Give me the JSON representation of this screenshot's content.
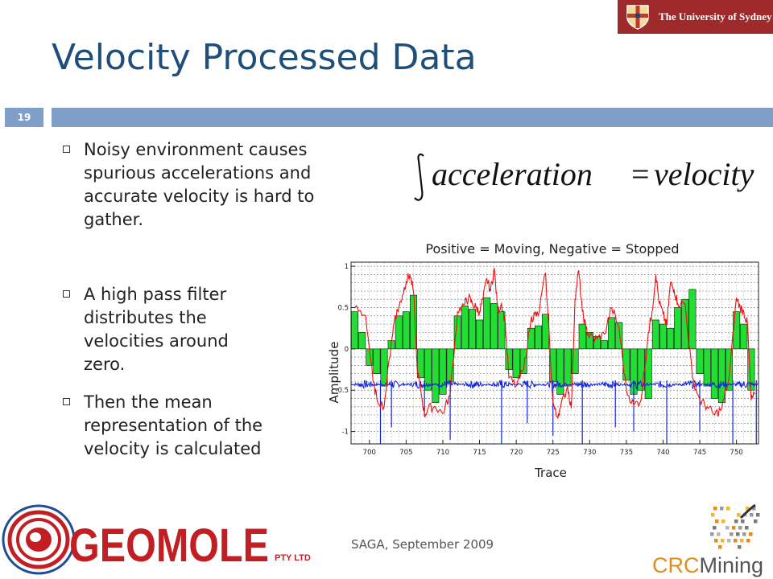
{
  "slide": {
    "title": "Velocity Processed Data",
    "number": "19",
    "university": "The University of Sydney",
    "footer": "SAGA, September 2009"
  },
  "bullets": [
    "Noisy environment causes spurious accelerations and accurate velocity is hard to gather.",
    "A high pass filter distributes the velocities around zero.",
    "Then the mean representation of the velocity is calculated"
  ],
  "equation": {
    "lhs": "acceleration",
    "rhs": "velocity",
    "operator": "="
  },
  "logos": {
    "geomole": "GEOMOLE",
    "geomole_suffix": "PTY LTD",
    "crc_prefix": "CRC",
    "crc_suffix": "Mining"
  },
  "colors": {
    "title": "#1f4e79",
    "header_bar": "#7f9fc9",
    "university_banner": "#9e2a2b",
    "bars": "#22dd33",
    "red_series": "#ee1111",
    "blue_series": "#1122dd",
    "geomole": "#c21f25"
  },
  "chart_data": {
    "type": "bar",
    "title": "Positive = Moving, Negative = Stopped",
    "xlabel": "Trace",
    "ylabel": "Amplitude",
    "xlim": [
      697.5,
      753
    ],
    "ylim": [
      -1.15,
      1.05
    ],
    "xticks": [
      700,
      705,
      710,
      715,
      720,
      725,
      730,
      735,
      740,
      745,
      750
    ],
    "yticks": [
      1,
      0.5,
      0,
      -0.5,
      -1
    ],
    "grid": true,
    "x": [
      698,
      699,
      700,
      701,
      702,
      703,
      704,
      705,
      706,
      707,
      708,
      709,
      710,
      711,
      712,
      713,
      714,
      715,
      716,
      717,
      718,
      719,
      720,
      721,
      722,
      723,
      724,
      725,
      726,
      727,
      728,
      729,
      730,
      731,
      732,
      733,
      734,
      735,
      736,
      737,
      738,
      739,
      740,
      741,
      742,
      743,
      744,
      745,
      746,
      747,
      748,
      749,
      750,
      751,
      752
    ],
    "values": [
      0.45,
      0.2,
      -0.2,
      -0.3,
      -0.45,
      0.1,
      0.4,
      0.45,
      0.65,
      -0.35,
      -0.5,
      -0.65,
      -0.55,
      -0.4,
      0.4,
      0.52,
      0.48,
      0.35,
      0.62,
      0.55,
      0.45,
      -0.25,
      -0.35,
      -0.3,
      0.25,
      0.28,
      0.42,
      -0.4,
      -0.55,
      -0.45,
      -0.3,
      0.3,
      0.2,
      0.15,
      0.1,
      0.38,
      0.32,
      -0.38,
      -0.55,
      -0.5,
      -0.6,
      0.35,
      0.3,
      0.25,
      0.5,
      0.6,
      0.72,
      -0.3,
      -0.45,
      -0.6,
      -0.65,
      -0.5,
      0.45,
      0.3,
      -0.5
    ],
    "series": [
      {
        "name": "",
        "x": [
          698,
          699.5,
          700.5,
          701,
          702,
          703,
          703.5,
          704,
          704.5,
          705,
          705.5,
          706,
          706.5,
          707,
          707.5,
          708,
          709,
          710,
          711,
          712,
          713,
          713.5,
          714,
          714.5,
          715,
          715.5,
          716,
          716.5,
          717,
          717.5,
          718,
          718.5,
          719,
          720,
          721,
          722,
          722.5,
          723,
          724,
          725,
          725.5,
          726,
          727,
          727.5,
          728,
          728.5,
          729,
          729.5,
          730,
          731,
          732,
          733,
          734,
          735,
          736,
          737,
          738,
          738.5,
          739,
          739.5,
          740,
          740.5,
          741,
          741.5,
          742,
          743,
          744,
          745,
          746,
          747,
          748,
          749,
          750,
          750.5,
          751,
          751.5,
          752,
          752.5
        ],
        "y": [
          0.5,
          0.4,
          -0.4,
          -0.6,
          -0.7,
          0.1,
          0.4,
          0.5,
          0.65,
          0.82,
          0.9,
          0.7,
          -0.25,
          -0.5,
          -0.8,
          -0.72,
          -0.7,
          -0.78,
          -0.55,
          0.45,
          0.55,
          0.62,
          0.55,
          0.5,
          0.45,
          0.62,
          0.85,
          0.7,
          0.98,
          0.45,
          0.55,
          0.32,
          -0.35,
          -0.45,
          -0.25,
          0.35,
          0.42,
          0.4,
          0.92,
          -0.65,
          -0.82,
          -0.72,
          -0.45,
          -0.72,
          0.6,
          0.95,
          0.45,
          0.25,
          0.15,
          0.12,
          0.18,
          0.5,
          0.25,
          -0.5,
          -0.68,
          -0.62,
          0.2,
          0.45,
          0.9,
          0.55,
          0.42,
          0.28,
          0.8,
          0.72,
          0.55,
          0.55,
          -0.35,
          -0.62,
          -0.7,
          -0.8,
          -0.72,
          -0.35,
          0.62,
          0.5,
          0.45,
          0.3,
          -0.62,
          -0.55
        ]
      },
      {
        "name": "",
        "base": -0.43,
        "spike_x": [
          701.5,
          703,
          707.5,
          711,
          718,
          721.5,
          725,
          729,
          733.5,
          736,
          740.5,
          745,
          749.5,
          752.7
        ],
        "spike_y": [
          -1.25,
          -0.95,
          -0.82,
          -1.1,
          -1.18,
          -0.9,
          -1.05,
          -1.2,
          -0.95,
          -1.0,
          -1.22,
          -1.0,
          -1.25,
          -1.3
        ]
      }
    ]
  }
}
